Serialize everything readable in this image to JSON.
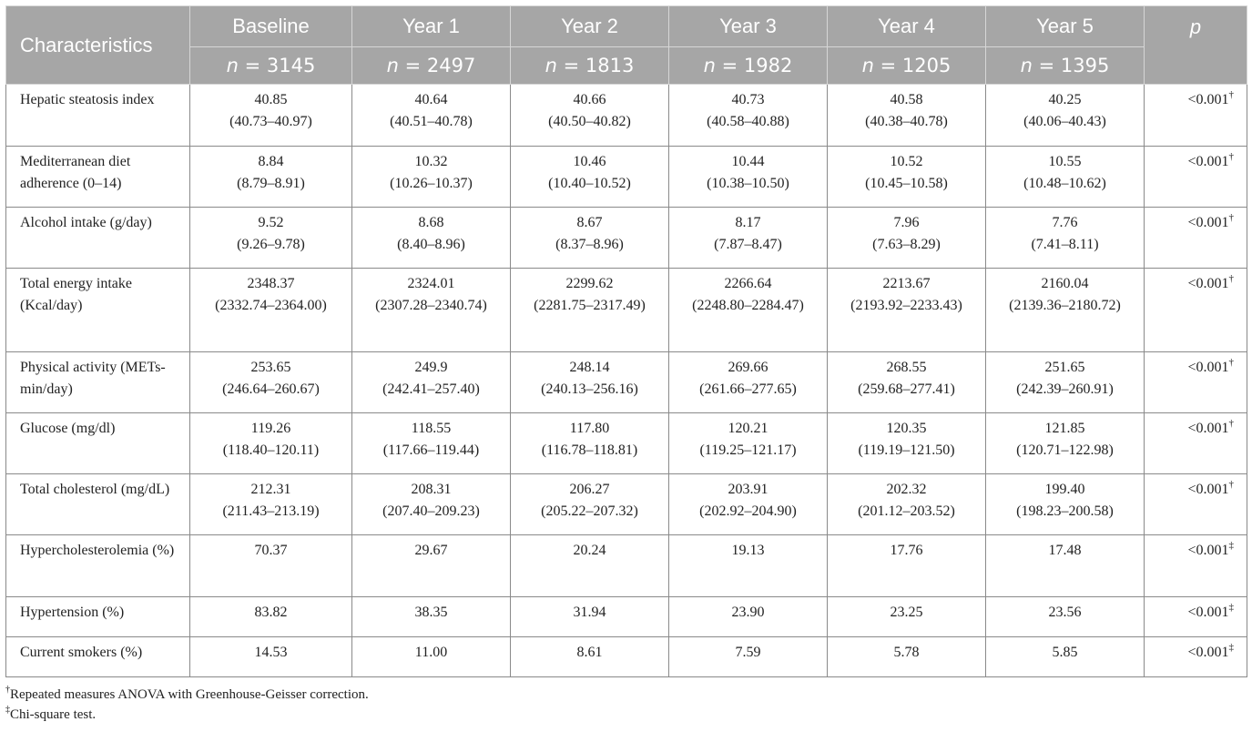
{
  "header": {
    "characteristics": "Characteristics",
    "p": "p",
    "columns": [
      {
        "label": "Baseline",
        "n_sym": "n",
        "n_val": " = 3145"
      },
      {
        "label": "Year 1",
        "n_sym": "n",
        "n_val": " = 2497"
      },
      {
        "label": "Year 2",
        "n_sym": "n",
        "n_val": " = 1813"
      },
      {
        "label": "Year 3",
        "n_sym": "n",
        "n_val": " = 1982"
      },
      {
        "label": "Year 4",
        "n_sym": "n",
        "n_val": " = 1205"
      },
      {
        "label": "Year 5",
        "n_sym": "n",
        "n_val": " = 1395"
      }
    ]
  },
  "rows": [
    {
      "label": "Hepatic steatosis index",
      "p": "<0.001",
      "mark": "†",
      "cells": [
        [
          "40.85",
          "(40.73–40.97)"
        ],
        [
          "40.64",
          "(40.51–40.78)"
        ],
        [
          "40.66",
          "(40.50–40.82)"
        ],
        [
          "40.73",
          "(40.58–40.88)"
        ],
        [
          "40.58",
          "(40.38–40.78)"
        ],
        [
          "40.25",
          "(40.06–40.43)"
        ]
      ]
    },
    {
      "label": "Mediterranean diet adherence (0–14)",
      "p": "<0.001",
      "mark": "†",
      "cells": [
        [
          "8.84",
          "(8.79–8.91)"
        ],
        [
          "10.32",
          "(10.26–10.37)"
        ],
        [
          "10.46",
          "(10.40–10.52)"
        ],
        [
          "10.44",
          "(10.38–10.50)"
        ],
        [
          "10.52",
          "(10.45–10.58)"
        ],
        [
          "10.55",
          "(10.48–10.62)"
        ]
      ]
    },
    {
      "label": "Alcohol intake (g/day)",
      "p": "<0.001",
      "mark": "†",
      "cells": [
        [
          "9.52",
          "(9.26–9.78)"
        ],
        [
          "8.68",
          "(8.40–8.96)"
        ],
        [
          "8.67",
          "(8.37–8.96)"
        ],
        [
          "8.17",
          "(7.87–8.47)"
        ],
        [
          "7.96",
          "(7.63–8.29)"
        ],
        [
          "7.76",
          "(7.41–8.11)"
        ]
      ]
    },
    {
      "label": "Total energy intake (Kcal/day)",
      "p": "<0.001",
      "mark": "†",
      "cells": [
        [
          "2348.37",
          "(2332.74–2364.00)"
        ],
        [
          "2324.01",
          "(2307.28–2340.74)"
        ],
        [
          "2299.62",
          "(2281.75–2317.49)"
        ],
        [
          "2266.64",
          "(2248.80–2284.47)"
        ],
        [
          "2213.67",
          "(2193.92–2233.43)"
        ],
        [
          "2160.04",
          "(2139.36–2180.72)"
        ]
      ]
    },
    {
      "label": "Physical activity (METs-min/day)",
      "p": "<0.001",
      "mark": "†",
      "cells": [
        [
          "253.65",
          "(246.64–260.67)"
        ],
        [
          "249.9",
          "(242.41–257.40)"
        ],
        [
          "248.14",
          "(240.13–256.16)"
        ],
        [
          "269.66",
          "(261.66–277.65)"
        ],
        [
          "268.55",
          "(259.68–277.41)"
        ],
        [
          "251.65",
          "(242.39–260.91)"
        ]
      ]
    },
    {
      "label": "Glucose (mg/dl)",
      "p": "<0.001",
      "mark": "†",
      "cells": [
        [
          "119.26",
          "(118.40–120.11)"
        ],
        [
          "118.55",
          "(117.66–119.44)"
        ],
        [
          "117.80",
          "(116.78–118.81)"
        ],
        [
          "120.21",
          "(119.25–121.17)"
        ],
        [
          "120.35",
          "(119.19–121.50)"
        ],
        [
          "121.85",
          "(120.71–122.98)"
        ]
      ]
    },
    {
      "label": "Total cholesterol (mg/dL)",
      "p": "<0.001",
      "mark": "†",
      "cells": [
        [
          "212.31",
          "(211.43–213.19)"
        ],
        [
          "208.31",
          "(207.40–209.23)"
        ],
        [
          "206.27",
          "(205.22–207.32)"
        ],
        [
          "203.91",
          "(202.92–204.90)"
        ],
        [
          "202.32",
          "(201.12–203.52)"
        ],
        [
          "199.40",
          "(198.23–200.58)"
        ]
      ]
    },
    {
      "label": "Hypercholesterolemia (%)",
      "p": "<0.001",
      "mark": "‡",
      "cells": [
        [
          "70.37",
          ""
        ],
        [
          "29.67",
          ""
        ],
        [
          "20.24",
          ""
        ],
        [
          "19.13",
          ""
        ],
        [
          "17.76",
          ""
        ],
        [
          "17.48",
          ""
        ]
      ]
    },
    {
      "label": "Hypertension (%)",
      "p": "<0.001",
      "mark": "‡",
      "cells": [
        [
          "83.82",
          ""
        ],
        [
          "38.35",
          ""
        ],
        [
          "31.94",
          ""
        ],
        [
          "23.90",
          ""
        ],
        [
          "23.25",
          ""
        ],
        [
          "23.56",
          ""
        ]
      ]
    },
    {
      "label": "Current smokers (%)",
      "p": "<0.001",
      "mark": "‡",
      "cells": [
        [
          "14.53",
          ""
        ],
        [
          "11.00",
          ""
        ],
        [
          "8.61",
          ""
        ],
        [
          "7.59",
          ""
        ],
        [
          "5.78",
          ""
        ],
        [
          "5.85",
          ""
        ]
      ]
    }
  ],
  "footnotes": [
    {
      "mark": "†",
      "text": "Repeated measures ANOVA with Greenhouse-Geisser correction."
    },
    {
      "mark": "‡",
      "text": "Chi-square test."
    }
  ]
}
